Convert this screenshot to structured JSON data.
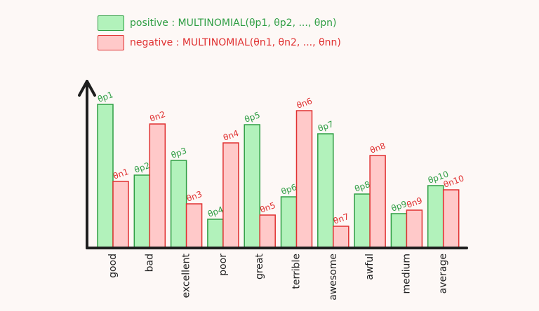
{
  "chart_data": {
    "type": "bar",
    "title": "",
    "xlabel": "",
    "ylabel": "",
    "ylim": [
      0,
      220
    ],
    "grid": false,
    "legend_placement": "top",
    "categories": [
      "good",
      "bad",
      "excellent",
      "poor",
      "great",
      "terrible",
      "awesome",
      "awful",
      "medium",
      "average"
    ],
    "series": [
      {
        "name": "positive : MULTINOMIAL(θp1, θp2, ..., θpn)",
        "color": "#2f9e44",
        "fill": "#b2f2bb",
        "values": [
          205,
          104,
          125,
          41,
          176,
          73,
          163,
          77,
          49,
          89
        ],
        "labels": [
          "θp1",
          "θp2",
          "θp3",
          "θp4",
          "θp5",
          "θp6",
          "θp7",
          "θp8",
          "θp9",
          "θp10"
        ]
      },
      {
        "name": "negative : MULTINOMIAL(θn1, θn2, ..., θnn)",
        "color": "#e03131",
        "fill": "#ffc9c9",
        "values": [
          95,
          177,
          63,
          150,
          47,
          196,
          31,
          132,
          54,
          83
        ],
        "labels": [
          "θn1",
          "θn2",
          "θn3",
          "θn4",
          "θn5",
          "θn6",
          "θn7",
          "θn8",
          "θn9",
          "θn10"
        ]
      }
    ]
  }
}
